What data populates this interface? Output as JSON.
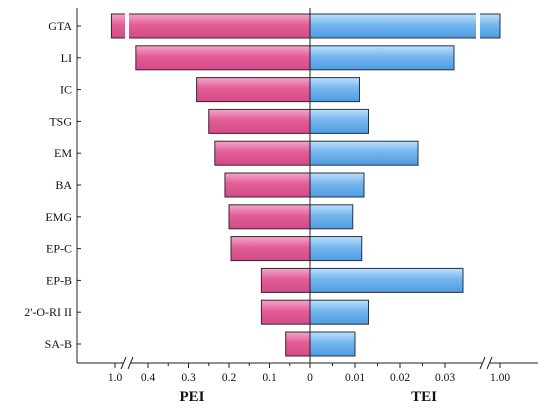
{
  "chart_data": {
    "type": "bar",
    "layout": "tornado",
    "categories": [
      "GTA",
      "LI",
      "IC",
      "TSG",
      "EM",
      "BA",
      "EMG",
      "EP-C",
      "EP-B",
      "2'-O-RI II",
      "SA-B"
    ],
    "series": [
      {
        "name": "PEI",
        "values": [
          1.03,
          0.43,
          0.28,
          0.25,
          0.235,
          0.21,
          0.2,
          0.195,
          0.12,
          0.12,
          0.06
        ],
        "color": "#e8689f"
      },
      {
        "name": "TEI",
        "values": [
          1.0,
          0.032,
          0.011,
          0.013,
          0.024,
          0.012,
          0.0095,
          0.0115,
          0.034,
          0.013,
          0.01
        ],
        "color": "#6aaee8"
      }
    ],
    "left_axis": {
      "label": "PEI",
      "ticks": [
        "1.0",
        "0.4",
        "0.3",
        "0.2",
        "0.1",
        "0"
      ],
      "axis_break": "between 1.0 and 0.4"
    },
    "right_axis": {
      "label": "TEI",
      "ticks": [
        "0",
        "0.01",
        "0.02",
        "0.03",
        "1.00"
      ],
      "axis_break": "between 0.03 and 1.00"
    },
    "center_label": "0",
    "grid": false,
    "legend": "none"
  }
}
